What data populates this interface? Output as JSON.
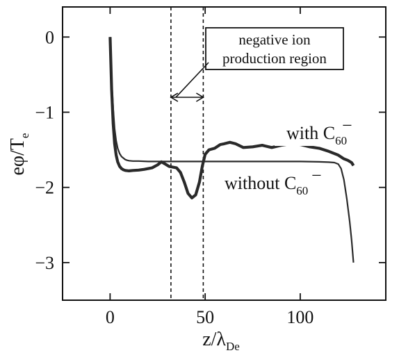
{
  "chart_data": {
    "type": "line",
    "xlabel": "z/λ",
    "xlabel_sub": "De",
    "ylabel": "eφ/T",
    "ylabel_sub": "e",
    "xlim": [
      -25,
      145
    ],
    "ylim": [
      -3.5,
      0.4
    ],
    "xticks": [
      0,
      50,
      100
    ],
    "xtick_labels": [
      "0",
      "50",
      "100"
    ],
    "yticks": [
      0,
      -1,
      -2,
      -3
    ],
    "ytick_labels": [
      "0",
      "−1",
      "−2",
      "−3"
    ],
    "grid": false,
    "series": [
      {
        "name": "without C60⁻",
        "label_text": "without C",
        "label_sub": "60",
        "label_sup": "−",
        "x": [
          0,
          0.8,
          1.6,
          2.4,
          3.2,
          4.0,
          5.0,
          6.0,
          7.0,
          8.0,
          9.0,
          10,
          12,
          15,
          20,
          30,
          40,
          50,
          60,
          70,
          80,
          90,
          100,
          110,
          115,
          118,
          120,
          121.5,
          123,
          124.5,
          126,
          127,
          128
        ],
        "y": [
          0,
          -0.55,
          -0.95,
          -1.22,
          -1.38,
          -1.48,
          -1.55,
          -1.59,
          -1.61,
          -1.63,
          -1.64,
          -1.645,
          -1.65,
          -1.65,
          -1.655,
          -1.655,
          -1.655,
          -1.655,
          -1.655,
          -1.655,
          -1.655,
          -1.655,
          -1.655,
          -1.66,
          -1.665,
          -1.67,
          -1.69,
          -1.75,
          -1.9,
          -2.15,
          -2.45,
          -2.7,
          -3.0
        ]
      },
      {
        "name": "with C60⁻",
        "label_text": "with C",
        "label_sub": "60",
        "label_sup": "−",
        "x": [
          0,
          0.8,
          1.6,
          2.4,
          3.2,
          4.0,
          5.0,
          6.0,
          7.0,
          8.0,
          10,
          12,
          15,
          18,
          22,
          25,
          27,
          29,
          31,
          33,
          35,
          37,
          39,
          41,
          43,
          45,
          47,
          48.5,
          50,
          52,
          55,
          58,
          60,
          63,
          66,
          70,
          75,
          80,
          85,
          90,
          95,
          100,
          105,
          110,
          115,
          120,
          123,
          125,
          127,
          128
        ],
        "y": [
          0,
          -0.7,
          -1.15,
          -1.42,
          -1.57,
          -1.66,
          -1.72,
          -1.75,
          -1.765,
          -1.775,
          -1.78,
          -1.775,
          -1.77,
          -1.76,
          -1.74,
          -1.7,
          -1.66,
          -1.69,
          -1.72,
          -1.73,
          -1.74,
          -1.8,
          -1.93,
          -2.08,
          -2.14,
          -2.1,
          -1.93,
          -1.72,
          -1.56,
          -1.5,
          -1.48,
          -1.43,
          -1.42,
          -1.4,
          -1.42,
          -1.47,
          -1.46,
          -1.44,
          -1.47,
          -1.44,
          -1.42,
          -1.43,
          -1.46,
          -1.48,
          -1.52,
          -1.57,
          -1.62,
          -1.64,
          -1.67,
          -1.71
        ]
      }
    ],
    "region": {
      "x_start": 32,
      "x_end": 49,
      "label_lines": [
        "negative ion",
        "production region"
      ]
    }
  }
}
